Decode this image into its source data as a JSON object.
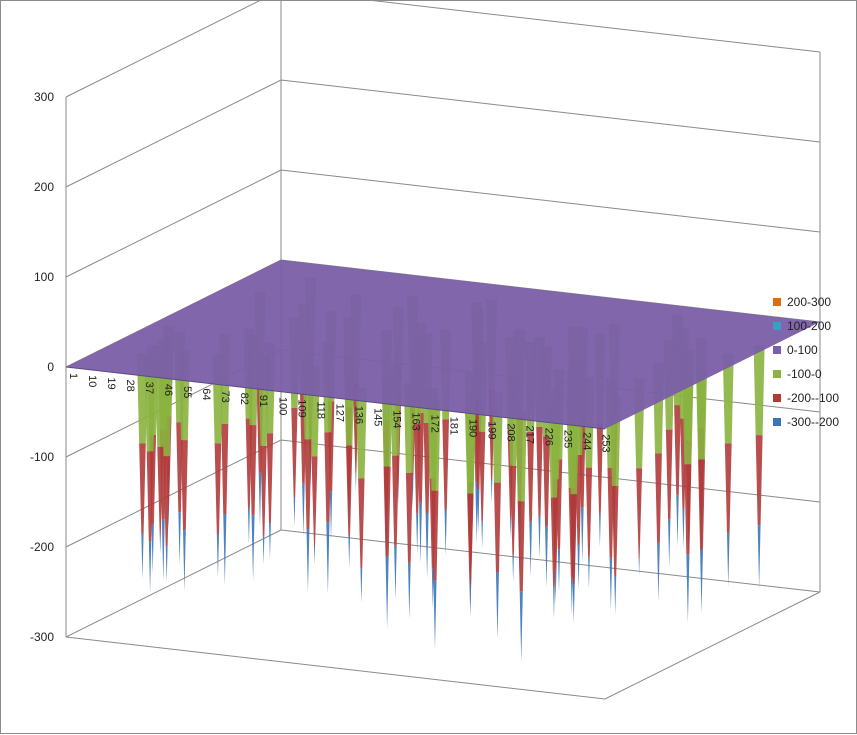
{
  "chart_data": {
    "type": "surface",
    "title": "",
    "ylim": [
      -300,
      300
    ],
    "z_ticks": [
      "300",
      "200",
      "100",
      "0",
      "-100",
      "-200",
      "-300"
    ],
    "x_ticks": [
      "1",
      "10",
      "19",
      "28",
      "37",
      "46",
      "55",
      "64",
      "73",
      "82",
      "91",
      "100",
      "109",
      "118",
      "127",
      "136",
      "145",
      "154",
      "163",
      "172",
      "181",
      "190",
      "199",
      "208",
      "217",
      "226",
      "235",
      "244",
      "253"
    ],
    "x_range": [
      1,
      256
    ],
    "depth_range": [
      1,
      256
    ],
    "baseline": 0,
    "spike_amplitude": 280,
    "legend_position": "right",
    "legend": [
      {
        "label": "200-300",
        "color": "#e36c0a"
      },
      {
        "label": "100-200",
        "color": "#31a2c4"
      },
      {
        "label": "0-100",
        "color": "#7a5ea8"
      },
      {
        "label": "-100-0",
        "color": "#8ab33f"
      },
      {
        "label": "-200--100",
        "color": "#b03b3b"
      },
      {
        "label": "-300--200",
        "color": "#3a75b8"
      }
    ]
  }
}
